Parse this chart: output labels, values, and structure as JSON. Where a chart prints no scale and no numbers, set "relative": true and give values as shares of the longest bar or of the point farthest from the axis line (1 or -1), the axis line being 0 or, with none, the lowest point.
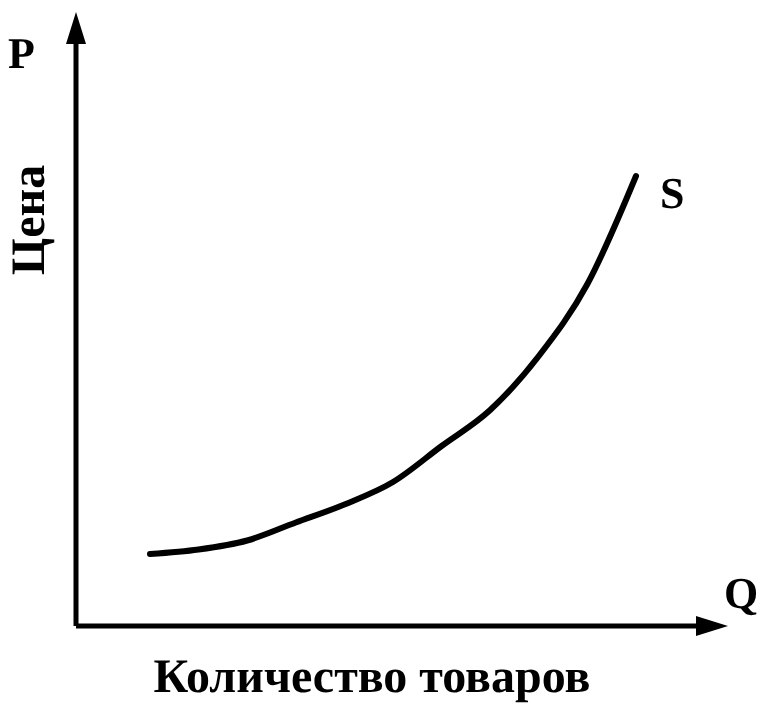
{
  "chart_data": {
    "type": "line",
    "relative": true,
    "xlabel": "Количество товаров",
    "ylabel": "Цена",
    "annotations": [
      "P",
      "Q"
    ],
    "categories": [
      null,
      null,
      null,
      null,
      null,
      null,
      null,
      null,
      null,
      null,
      null
    ],
    "series": [
      {
        "name": "S",
        "color": "#000000",
        "values": [
          0.16,
          0.17,
          0.19,
          0.23,
          0.27,
          0.32,
          0.4,
          0.48,
          0.6,
          0.76,
          1
        ]
      }
    ],
    "marker": "none",
    "line_style": "solid",
    "tick_labels": false
  }
}
